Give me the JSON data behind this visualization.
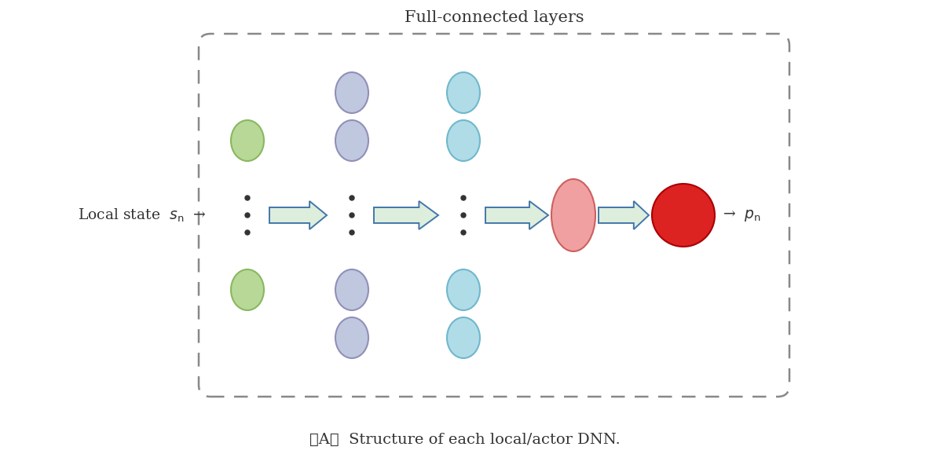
{
  "title": "Full-connected layers",
  "caption": "（A）  Structure of each local/actor DNN.",
  "bg_color": "#ffffff",
  "box_color": "#888888",
  "input_node_color": "#b8d898",
  "input_node_edge": "#88b860",
  "layer1_color": "#c0c8e0",
  "layer1_edge": "#9090b8",
  "layer2_color": "#b0dce8",
  "layer2_edge": "#70b8cc",
  "output1_color": "#f0a0a0",
  "output1_edge": "#cc6060",
  "output2_color": "#dd2222",
  "output2_edge": "#aa0000",
  "arrow_fill": "#ddeedd",
  "arrow_edge": "#4477aa",
  "dot_color": "#333333",
  "text_color": "#333333",
  "input_label": "Local state  $s_{\\mathrm{n}}$",
  "output_label": "$p_{\\mathrm{n}}$"
}
